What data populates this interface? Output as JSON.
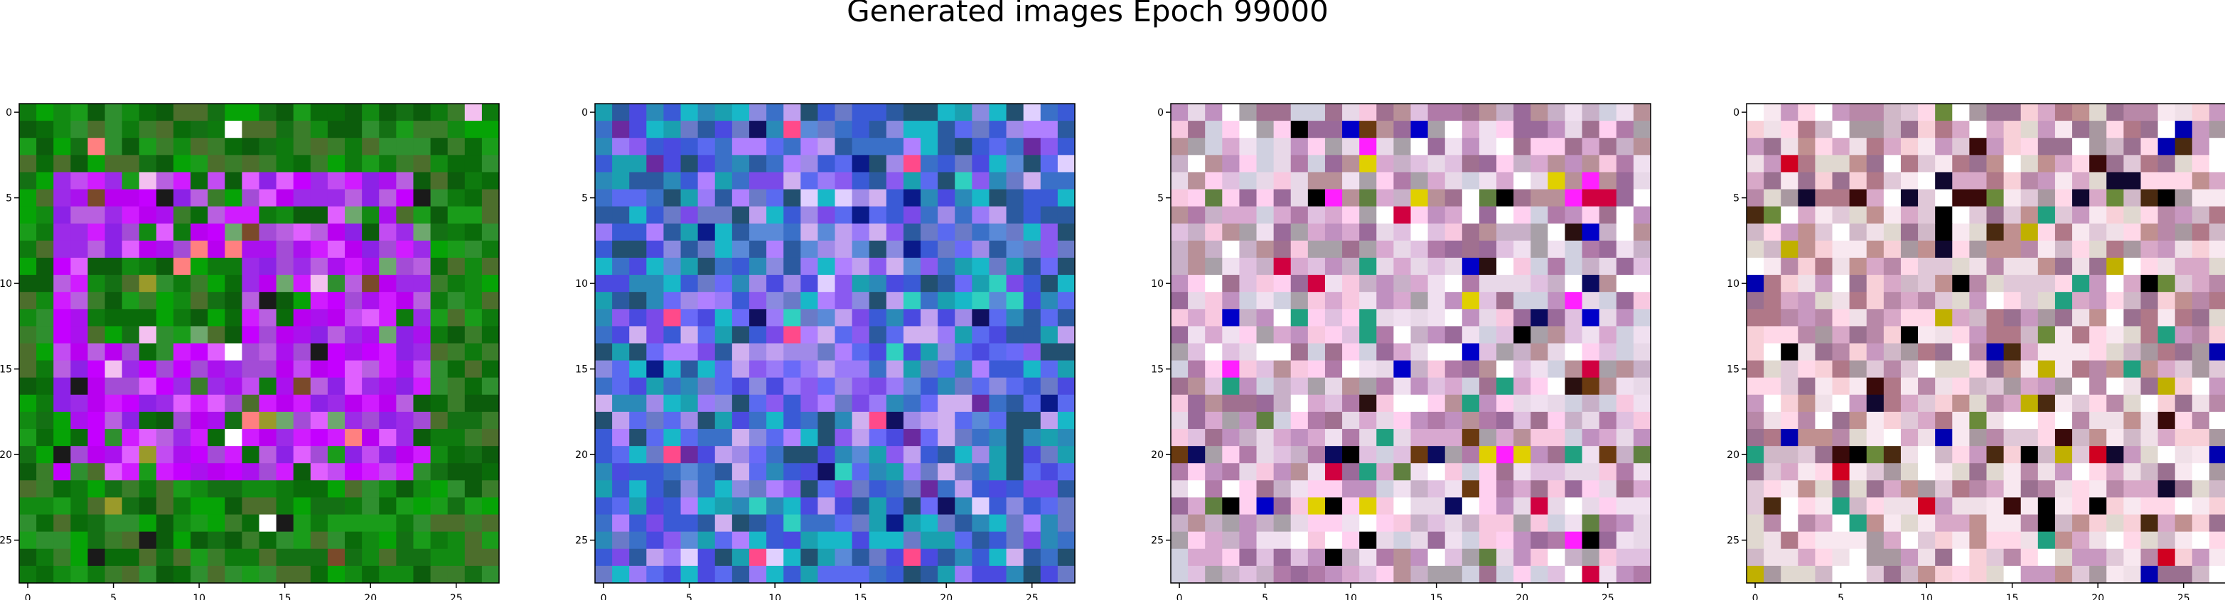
{
  "figure": {
    "title": "Generated images Epoch 99000"
  },
  "chart_data": [
    {
      "type": "heatmap",
      "title": "",
      "grid_size": 28,
      "xticks": [
        "0",
        "5",
        "10",
        "15",
        "20",
        "25"
      ],
      "yticks": [
        "0",
        "5",
        "10",
        "15",
        "20",
        "25"
      ],
      "xlim": [
        -0.5,
        27.5
      ],
      "ylim": [
        27.5,
        -0.5
      ],
      "palette": {
        "background": [
          "#0a6b0a",
          "#128a12",
          "#1a9c1a",
          "#0e7a0e",
          "#2f8f2f",
          "#0c5c0c",
          "#3a7d2a",
          "#147014",
          "#06a306",
          "#4c6e2c"
        ],
        "foreground": [
          "#c400ff",
          "#b800f0",
          "#d01cff",
          "#aa11ee",
          "#9c2be8",
          "#c24cf2",
          "#a34cd6",
          "#e060ff",
          "#8c22e6",
          "#b860e0"
        ],
        "accent": [
          "#ffffff",
          "#f3c0f0",
          "#9a9a2a",
          "#7a4a2a",
          "#1a1a1a",
          "#6ea86e",
          "#ff8080"
        ],
        "shapes": "ring",
        "seed": 11
      }
    },
    {
      "type": "heatmap",
      "title": "",
      "grid_size": 28,
      "xticks": [
        "0",
        "5",
        "10",
        "15",
        "20",
        "25"
      ],
      "yticks": [
        "0",
        "5",
        "10",
        "15",
        "20",
        "25"
      ],
      "xlim": [
        -0.5,
        27.5
      ],
      "ylim": [
        27.5,
        -0.5
      ],
      "palette": {
        "background": [
          "#3a5ad6",
          "#5a6af0",
          "#2a8ab8",
          "#6a7ac8",
          "#4a4ae0",
          "#1aa0b0",
          "#3a70c8",
          "#2b5aa0",
          "#18b8c8",
          "#225070"
        ],
        "foreground": [
          "#8a5af0",
          "#9a7af8",
          "#a08ae8",
          "#7a4ae8",
          "#c0a0f0",
          "#6a6af8",
          "#b080ff",
          "#5a8ad8",
          "#d0b0f0",
          "#8a8ae0"
        ],
        "accent": [
          "#ff4a8a",
          "#101060",
          "#e0d0ff",
          "#0a1a8a",
          "#30d0c0",
          "#6a2aa0"
        ],
        "shapes": "cloud",
        "seed": 23
      }
    },
    {
      "type": "heatmap",
      "title": "",
      "grid_size": 28,
      "xticks": [
        "0",
        "5",
        "10",
        "15",
        "20",
        "25"
      ],
      "yticks": [
        "0",
        "5",
        "10",
        "15",
        "20",
        "25"
      ],
      "xlim": [
        -0.5,
        27.5
      ],
      "ylim": [
        27.5,
        -0.5
      ],
      "palette": {
        "background": [
          "#c090c0",
          "#d8a8d0",
          "#b07aa8",
          "#e0c0e0",
          "#a8a0a8",
          "#c8b0c8",
          "#9a6a9a",
          "#d0d0e0",
          "#b89098",
          "#a07090"
        ],
        "foreground": [
          "#f0e0f0",
          "#ffd0f0",
          "#e8d8e8",
          "#ffffff",
          "#f8c8e0"
        ],
        "accent": [
          "#000000",
          "#0a0a60",
          "#2a1010",
          "#0000c8",
          "#20a080",
          "#d00040",
          "#608040",
          "#e0d000",
          "#ff20ff",
          "#6a3a10"
        ],
        "shapes": "stripes",
        "seed": 37
      }
    },
    {
      "type": "heatmap",
      "title": "",
      "grid_size": 28,
      "xticks": [
        "0",
        "5",
        "10",
        "15",
        "20",
        "25"
      ],
      "yticks": [
        "0",
        "5",
        "10",
        "15",
        "20",
        "25"
      ],
      "xlim": [
        -0.5,
        27.5
      ],
      "ylim": [
        27.5,
        -0.5
      ],
      "palette": {
        "background": [
          "#c898c0",
          "#d8a8c8",
          "#b888a8",
          "#e0c8d8",
          "#a898a0",
          "#d0b8c8",
          "#9a7090",
          "#e0d8d0",
          "#c09090",
          "#b07888"
        ],
        "foreground": [
          "#f8e8f0",
          "#ffd8e8",
          "#f0e0e8",
          "#ffffff",
          "#f8d0d8"
        ],
        "accent": [
          "#000000",
          "#100830",
          "#3a0a0a",
          "#0000b0",
          "#20a080",
          "#d00020",
          "#6a8a3a",
          "#c0b000",
          "#4a2a10"
        ],
        "shapes": "stripes",
        "seed": 53
      }
    }
  ]
}
